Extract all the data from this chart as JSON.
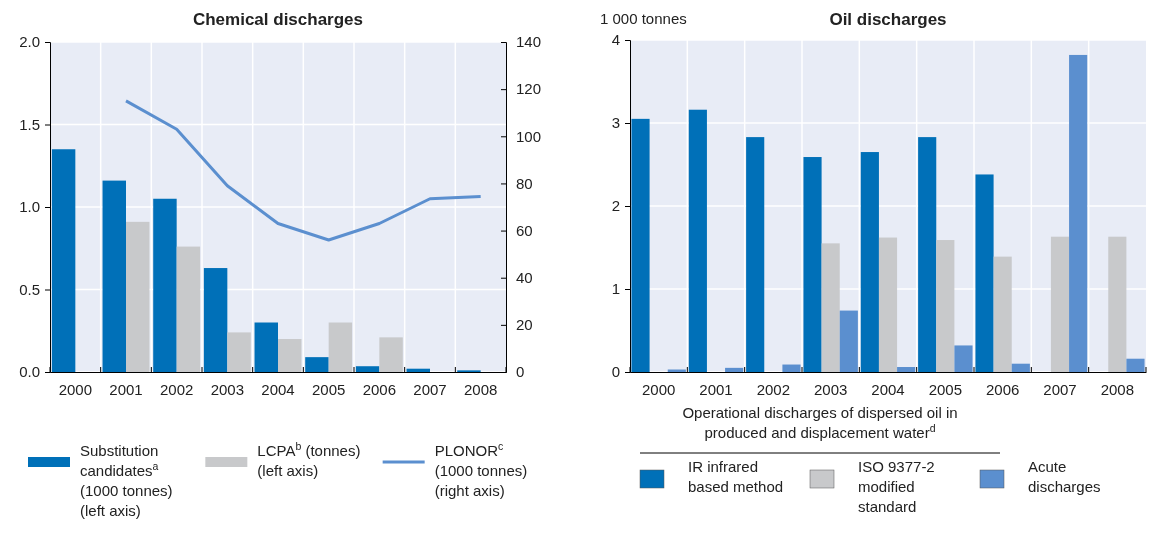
{
  "chart_data": [
    {
      "type": "bar",
      "title": "Chemical discharges",
      "categories": [
        "2000",
        "2001",
        "2002",
        "2003",
        "2004",
        "2005",
        "2006",
        "2007",
        "2008"
      ],
      "series": [
        {
          "name": "Substitution candidates$^{a}$ (1000 tonnes) (left axis)",
          "color": "#0070b8",
          "values": [
            1.35,
            1.16,
            1.05,
            0.63,
            0.3,
            0.09,
            0.035,
            0.02,
            0.01
          ]
        },
        {
          "name": "LCPA$^{b}$ (tonnes) (left axis)",
          "color": "#c8c9cb",
          "values": [
            null,
            0.91,
            0.76,
            0.24,
            0.2,
            0.3,
            0.21,
            null,
            null
          ]
        },
        {
          "name": "PLONOR$^{c}$ (1000 tonnes) (right axis)",
          "type": "line",
          "axis": "y2",
          "color": "#5b8fcf",
          "values": [
            null,
            115,
            103,
            79,
            63,
            56,
            63,
            73.5,
            74.5
          ]
        }
      ],
      "ylim": [
        0,
        2
      ],
      "yticks": [
        {
          "value": 0,
          "label": "0.0"
        },
        {
          "value": 0.5,
          "label": "0.5"
        },
        {
          "value": 1,
          "label": "1.0"
        },
        {
          "value": 1.5,
          "label": "1.5"
        },
        {
          "value": 2,
          "label": "2.0"
        }
      ],
      "y2lim": [
        0,
        140
      ],
      "y2ticks": [
        0,
        20,
        40,
        60,
        80,
        100,
        120,
        140
      ],
      "grid": true,
      "legend": "bottom",
      "marker": "none",
      "line_style": "solid"
    },
    {
      "type": "bar",
      "title": "Oil discharges",
      "ylabel": "1 000 tonnes",
      "legend_title": "Operational discharges of dispersed oil in produced and displacement water$^{d}$",
      "categories": [
        "2000",
        "2001",
        "2002",
        "2003",
        "2004",
        "2005",
        "2006",
        "2007",
        "2008"
      ],
      "series": [
        {
          "name": "IR infrared based method",
          "color": "#0070b8",
          "values": [
            3.05,
            3.16,
            2.83,
            2.59,
            2.65,
            2.83,
            2.38,
            null,
            null
          ]
        },
        {
          "name": "ISO 9377-2 modified standard",
          "color": "#c8c9cb",
          "values": [
            null,
            null,
            null,
            1.55,
            1.62,
            1.59,
            1.39,
            1.63,
            1.63
          ]
        },
        {
          "name": "Acute discharges",
          "color": "#5b8fcf",
          "values": [
            0.03,
            0.05,
            0.09,
            0.74,
            0.06,
            0.32,
            0.1,
            3.82,
            0.16
          ]
        }
      ],
      "ylim": [
        0,
        4
      ],
      "yticks": [
        0,
        1,
        2,
        3,
        4
      ],
      "grid": true,
      "legend": "bottom"
    }
  ]
}
